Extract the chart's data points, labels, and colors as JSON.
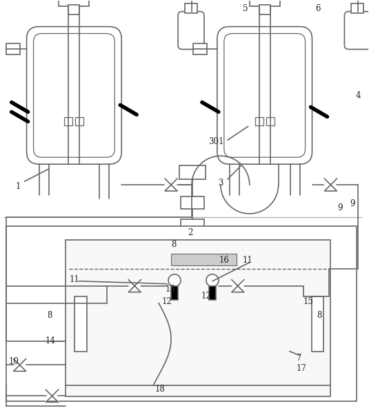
{
  "fig_width": 5.35,
  "fig_height": 6.02,
  "dpi": 100,
  "lc": "#666666",
  "bg": "#ffffff"
}
